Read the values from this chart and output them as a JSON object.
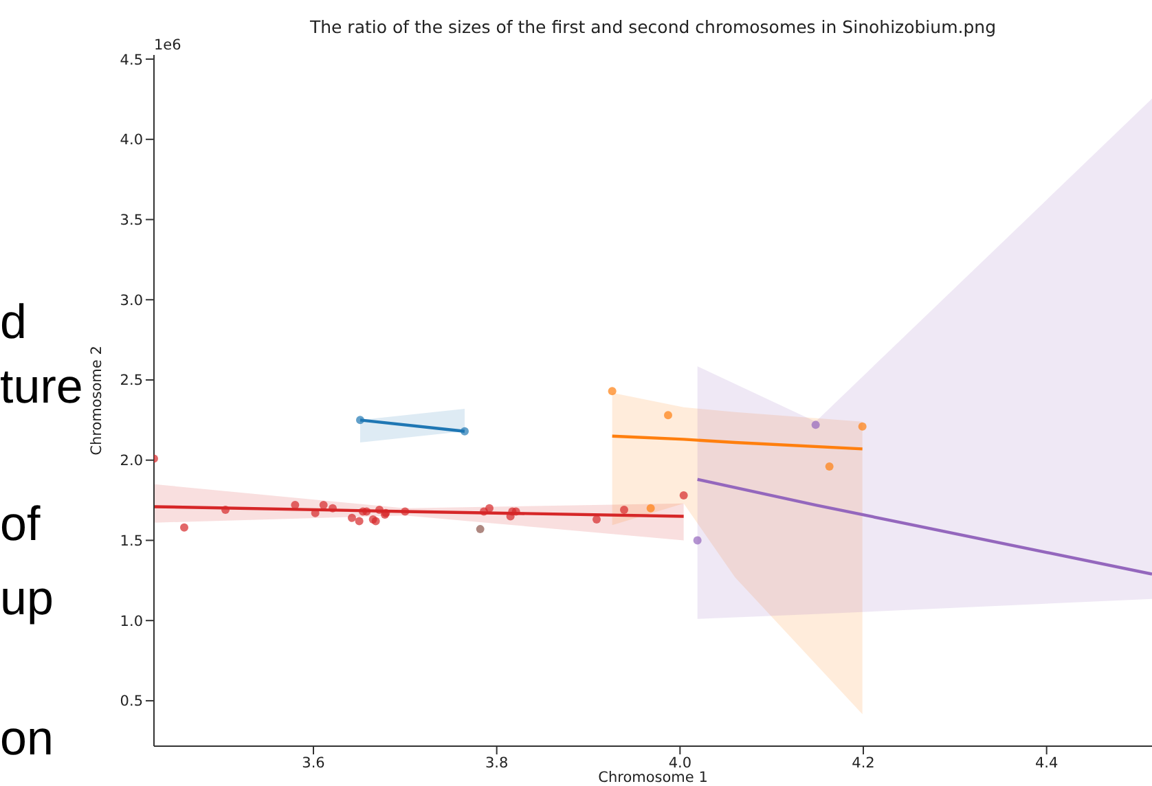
{
  "chart_data": {
    "type": "scatter",
    "title": "The ratio of the sizes of the first and second chromosomes in Sinohizobium.png",
    "xlabel": "Chromosome 1",
    "ylabel": "Chromosome 2",
    "xlim": [
      3.426,
      4.515
    ],
    "xticks": [
      3.6,
      3.8,
      {
        "value": 4,
        "label": "4.0"
      },
      4.2,
      4.4
    ],
    "ylim": [
      0.217,
      4.526
    ],
    "yticks": [
      0.5,
      {
        "value": 1,
        "label": "1.0"
      },
      1.5,
      {
        "value": 2,
        "label": "2.0"
      },
      2.5,
      {
        "value": 3,
        "label": "3.0"
      },
      3.5,
      {
        "value": 4,
        "label": "4.0"
      },
      4.5
    ],
    "grid": false,
    "legend": false,
    "marker": "circle",
    "annotations": [
      "1e6",
      "d",
      "ture",
      "of",
      "up",
      "on"
    ],
    "series": [
      {
        "color": "#d62728",
        "x": [
          3.426,
          3.459,
          3.504,
          3.58,
          3.602,
          3.611,
          3.621,
          3.642,
          3.65,
          3.654,
          3.658,
          3.665,
          3.668,
          3.672,
          3.678,
          3.679,
          3.7,
          3.786,
          3.792,
          3.815,
          3.817,
          3.821,
          3.909,
          3.939,
          4.004
        ],
        "values": [
          2.01,
          1.58,
          1.69,
          1.72,
          1.67,
          1.72,
          1.7,
          1.64,
          1.62,
          1.68,
          1.68,
          1.63,
          1.62,
          1.69,
          1.66,
          1.67,
          1.68,
          1.68,
          1.7,
          1.65,
          1.68,
          1.68,
          1.63,
          1.69,
          1.78
        ]
      },
      {
        "color": "#8c564b",
        "x": [
          3.782
        ],
        "values": [
          1.57
        ]
      },
      {
        "color": "#ff7f0e",
        "x": [
          3.926,
          3.968,
          3.987,
          4.163,
          4.199
        ],
        "values": [
          2.43,
          1.7,
          2.28,
          1.96,
          2.21
        ]
      },
      {
        "color": "#9467bd",
        "x": [
          4.019,
          4.148
        ],
        "values": [
          1.5,
          2.22
        ]
      },
      {
        "color": "#1f77b4",
        "x": [
          3.651,
          3.765
        ],
        "values": [
          2.25,
          2.18
        ]
      },
      {
        "type": "line",
        "marker": "none",
        "color": "#d62728",
        "x": [
          3.426,
          3.7,
          4.004
        ],
        "values": [
          1.71,
          1.68,
          1.65
        ],
        "lower": [
          1.61,
          1.655,
          1.5
        ],
        "upper": [
          1.85,
          1.7,
          1.73
        ]
      },
      {
        "type": "line",
        "marker": "none",
        "color": "#1f77b4",
        "x": [
          3.651,
          3.765
        ],
        "values": [
          2.25,
          2.18
        ],
        "lower": [
          2.11,
          2.18
        ],
        "upper": [
          2.25,
          2.32
        ]
      },
      {
        "type": "line",
        "marker": "none",
        "color": "#ff7f0e",
        "x": [
          3.926,
          4.004,
          4.06,
          4.199
        ],
        "values": [
          2.15,
          2.13,
          2.11,
          2.07
        ],
        "lower": [
          1.595,
          1.73,
          1.27,
          0.416
        ],
        "upper": [
          2.42,
          2.33,
          2.3,
          2.24
        ]
      },
      {
        "type": "line",
        "marker": "none",
        "color": "#9467bd",
        "x": [
          4.019,
          4.148,
          4.515
        ],
        "values": [
          1.88,
          1.72,
          1.29
        ],
        "lower": [
          1.01,
          1.04,
          1.135
        ],
        "upper": [
          2.585,
          2.24,
          4.254
        ]
      }
    ]
  }
}
